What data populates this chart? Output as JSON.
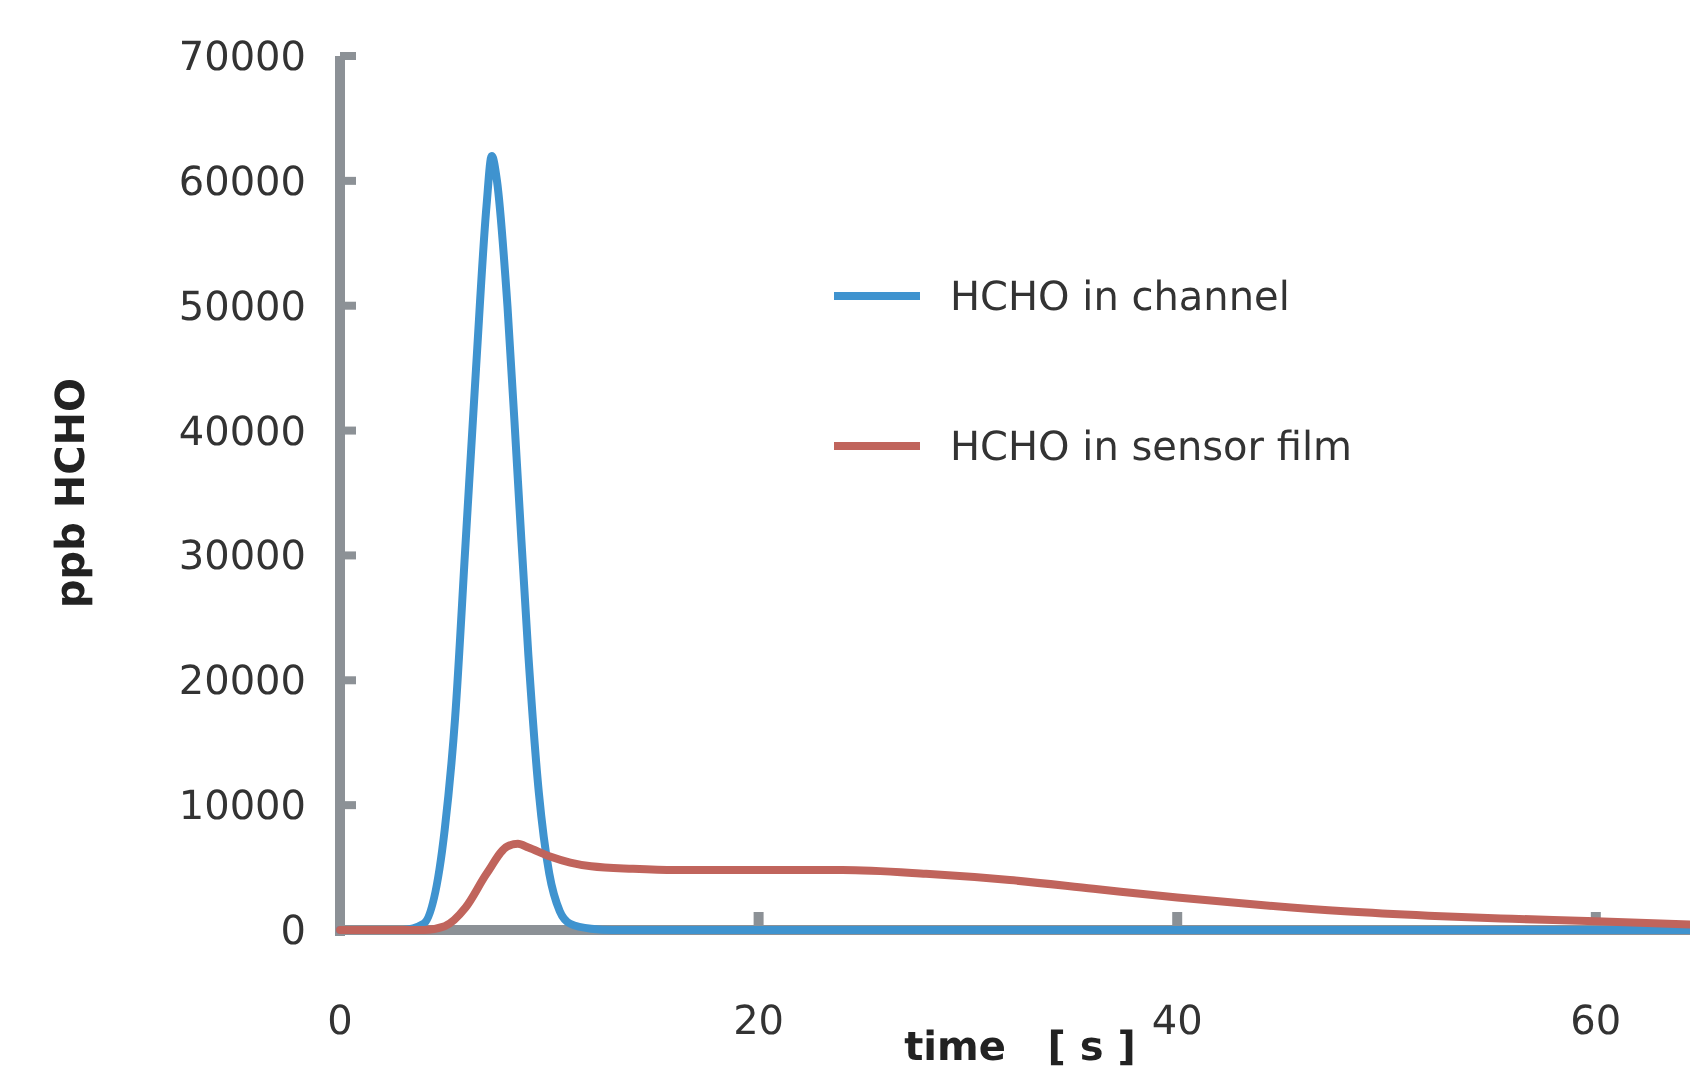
{
  "chart_data": {
    "type": "line",
    "xlabel": "time   [ s ]",
    "ylabel": "ppb HCHO",
    "xlim": [
      0,
      64.5
    ],
    "ylim": [
      0,
      70000
    ],
    "xticks": [
      0,
      20,
      40,
      60
    ],
    "yticks": [
      0,
      10000,
      20000,
      30000,
      40000,
      50000,
      60000,
      70000
    ],
    "grid": false,
    "legend": "top right",
    "marker": "none",
    "line_style": "solid",
    "series": [
      {
        "name": "HCHO in channel",
        "color": "#3f93cf",
        "x": [
          0,
          3,
          4,
          5,
          5.5,
          6,
          6.5,
          7,
          7.25,
          7.5,
          8,
          8.5,
          9,
          9.5,
          10,
          10.5,
          11,
          12,
          13,
          64.5
        ],
        "values": [
          0,
          0,
          500,
          8000,
          17000,
          31000,
          45000,
          58000,
          62000,
          60000,
          50000,
          36000,
          22000,
          11000,
          4500,
          1500,
          500,
          100,
          0,
          0
        ]
      },
      {
        "name": "HCHO in sensor film",
        "color": "#c0645c",
        "x": [
          0,
          4,
          5,
          6,
          7,
          8,
          8.5,
          9,
          10,
          11,
          12,
          14,
          16,
          20,
          24,
          28,
          32,
          36,
          40,
          44,
          48,
          52,
          56,
          60,
          64.5
        ],
        "values": [
          0,
          0,
          300,
          1800,
          4500,
          6700,
          6900,
          6600,
          5900,
          5400,
          5100,
          4900,
          4800,
          4800,
          4800,
          4500,
          4000,
          3300,
          2600,
          2000,
          1500,
          1150,
          900,
          700,
          450
        ]
      }
    ]
  }
}
